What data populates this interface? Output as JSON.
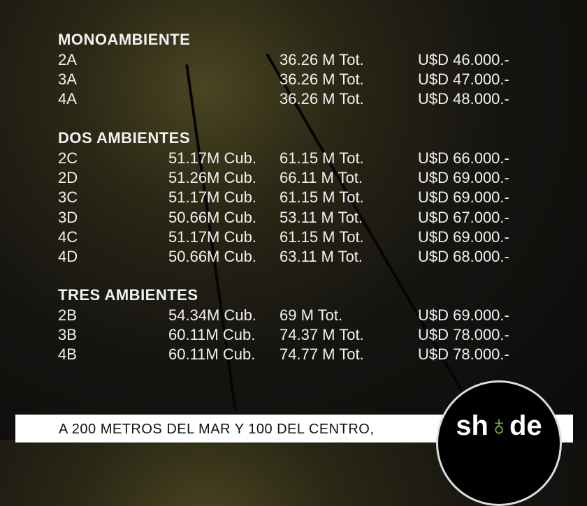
{
  "sections": [
    {
      "title": "MONOAMBIENTE",
      "rows": [
        [
          "2A",
          "",
          "36.26 M Tot.",
          "U$D 46.000.-"
        ],
        [
          "3A",
          "",
          "36.26 M Tot.",
          "U$D 47.000.-"
        ],
        [
          "4A",
          "",
          "36.26 M Tot.",
          "U$D 48.000.-"
        ]
      ]
    },
    {
      "title": "DOS AMBIENTES",
      "rows": [
        [
          "2C",
          "51.17M Cub.",
          "61.15 M Tot.",
          "U$D 66.000.-"
        ],
        [
          "2D",
          "51.26M Cub.",
          "66.11 M Tot.",
          "U$D 69.000.-"
        ],
        [
          "3C",
          "51.17M Cub.",
          "61.15 M Tot.",
          "U$D 69.000.-"
        ],
        [
          "3D",
          "50.66M Cub.",
          "53.11 M Tot.",
          "U$D 67.000.-"
        ],
        [
          "4C",
          "51.17M Cub.",
          "61.15 M Tot.",
          "U$D 69.000.-"
        ],
        [
          "4D",
          "50.66M Cub.",
          "63.11 M Tot.",
          "U$D 68.000.-"
        ]
      ]
    },
    {
      "title": "TRES AMBIENTES",
      "rows": [
        [
          "2B",
          "54.34M Cub.",
          "69 M Tot.",
          "U$D 69.000.-"
        ],
        [
          "3B",
          "60.11M Cub.",
          "74.37 M Tot.",
          "U$D 78.000.-"
        ],
        [
          "4B",
          "60.11M Cub.",
          "74.77 M Tot.",
          "U$D 78.000.-"
        ]
      ]
    }
  ],
  "banner": {
    "text": "A 200 METROS DEL MAR Y 100 DEL CENTRO,"
  },
  "logo": {
    "text_left": "sh",
    "text_mid": "♁",
    "text_right": "de",
    "accent": "#7dc242"
  }
}
